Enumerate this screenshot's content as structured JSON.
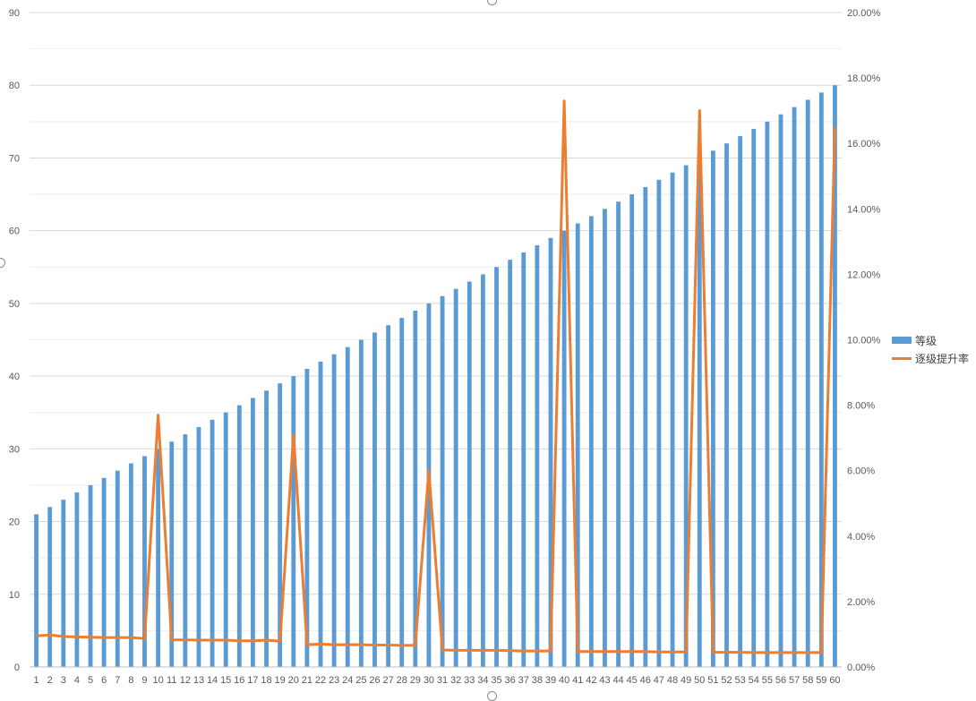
{
  "chart_data": {
    "type": "bar+line",
    "categories": [
      1,
      2,
      3,
      4,
      5,
      6,
      7,
      8,
      9,
      10,
      11,
      12,
      13,
      14,
      15,
      16,
      17,
      18,
      19,
      20,
      21,
      22,
      23,
      24,
      25,
      26,
      27,
      28,
      29,
      30,
      31,
      32,
      33,
      34,
      35,
      36,
      37,
      38,
      39,
      40,
      41,
      42,
      43,
      44,
      45,
      46,
      47,
      48,
      49,
      50,
      51,
      52,
      53,
      54,
      55,
      56,
      57,
      58,
      59,
      60
    ],
    "series": [
      {
        "name": "等级",
        "type": "bar",
        "axis": "left",
        "color": "#5B9BD5",
        "values": [
          21,
          22,
          23,
          24,
          25,
          26,
          27,
          28,
          29,
          30,
          31,
          32,
          33,
          34,
          35,
          36,
          37,
          38,
          39,
          40,
          41,
          42,
          43,
          44,
          45,
          46,
          47,
          48,
          49,
          50,
          51,
          52,
          53,
          54,
          55,
          56,
          57,
          58,
          59,
          60,
          61,
          62,
          63,
          64,
          65,
          66,
          67,
          68,
          69,
          70,
          71,
          72,
          73,
          74,
          75,
          76,
          77,
          78,
          79,
          80
        ]
      },
      {
        "name": "逐级提升率",
        "type": "line",
        "axis": "right",
        "color": "#ED7D31",
        "values": [
          0.0095,
          0.0098,
          0.0093,
          0.0092,
          0.0091,
          0.009,
          0.009,
          0.009,
          0.0087,
          0.077,
          0.0083,
          0.0083,
          0.0082,
          0.0082,
          0.0082,
          0.008,
          0.008,
          0.0082,
          0.0079,
          0.071,
          0.0068,
          0.007,
          0.0068,
          0.0068,
          0.0068,
          0.0067,
          0.0067,
          0.0066,
          0.0066,
          0.06,
          0.0052,
          0.0051,
          0.0051,
          0.0051,
          0.0051,
          0.005,
          0.0049,
          0.0049,
          0.0049,
          0.173,
          0.0047,
          0.0047,
          0.0047,
          0.0047,
          0.0047,
          0.0047,
          0.0046,
          0.0046,
          0.0046,
          0.17,
          0.0045,
          0.0045,
          0.0045,
          0.0044,
          0.0044,
          0.0044,
          0.0044,
          0.0044,
          0.0044,
          0.165
        ]
      }
    ],
    "y_left": {
      "ylim": [
        0,
        90
      ],
      "ticks": [
        0,
        10,
        20,
        30,
        40,
        50,
        60,
        70,
        80,
        90
      ]
    },
    "y_right": {
      "ylim": [
        0,
        0.2
      ],
      "ticks": [
        "0.00%",
        "2.00%",
        "4.00%",
        "6.00%",
        "8.00%",
        "10.00%",
        "12.00%",
        "14.00%",
        "16.00%",
        "18.00%",
        "20.00%"
      ]
    },
    "grid": true,
    "legend_position": "right"
  }
}
